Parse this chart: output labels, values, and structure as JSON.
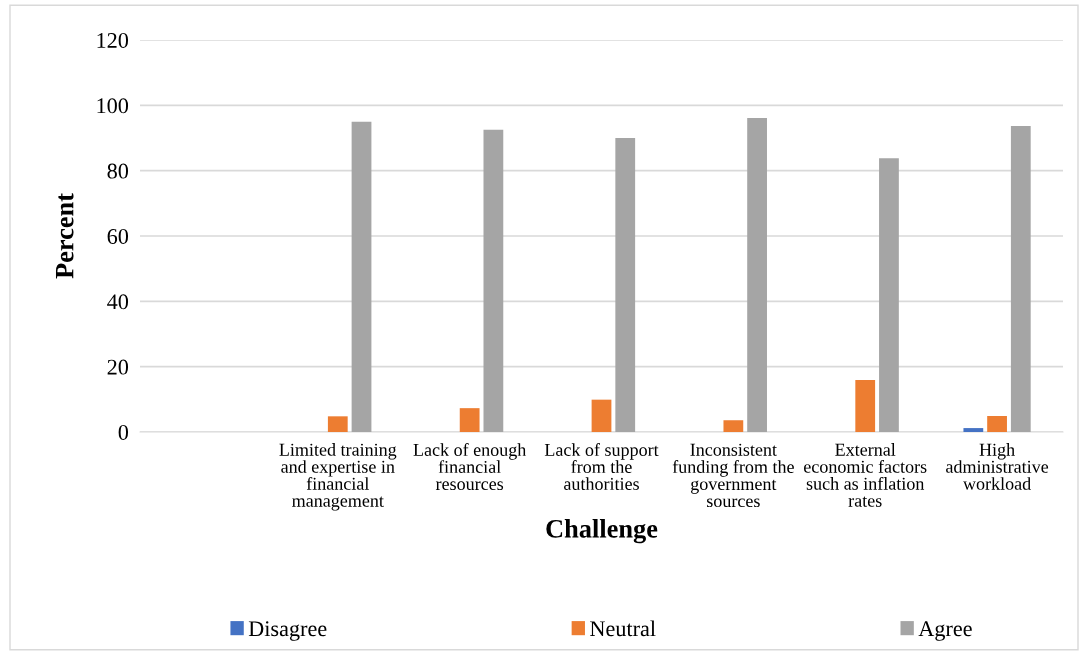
{
  "chart_data": {
    "type": "bar",
    "xlabel": "Challenge",
    "ylabel": "Percent",
    "categories": [
      null,
      "Limited training and expertise in financial management",
      "Lack of enough financial resources",
      "Lack of support from the authorities",
      "Inconsistent funding from the government sources",
      "External economic factors such as inflation rates",
      "High administrative workload"
    ],
    "series": [
      {
        "name": "Disagree",
        "color": "#4472c4",
        "values": [
          null,
          0,
          0,
          0,
          0,
          0,
          1.2
        ]
      },
      {
        "name": "Neutral",
        "color": "#ed7d31",
        "values": [
          null,
          4.8,
          7.3,
          9.9,
          3.6,
          15.9,
          4.9
        ]
      },
      {
        "name": "Agree",
        "color": "#a5a5a5",
        "values": [
          null,
          95,
          92.5,
          90,
          96.1,
          83.8,
          93.7
        ]
      }
    ],
    "ylim": [
      0,
      120
    ],
    "yticks": [
      0,
      20,
      40,
      60,
      80,
      100,
      120
    ],
    "grid": "y",
    "legend": "bottom"
  }
}
